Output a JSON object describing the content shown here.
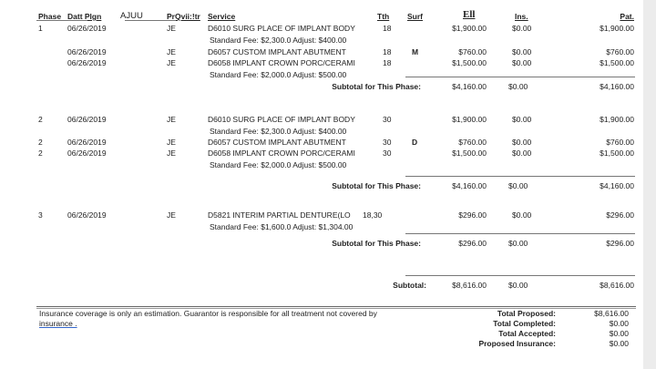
{
  "headers": {
    "phase": "Phase",
    "date": "Datt Plgn",
    "ajuu": "AJUU",
    "provider": "PrQvii:!tr",
    "service": "Service",
    "tooth": "Tth",
    "surf": "Surf",
    "fee": "Ell",
    "ins": "Ins.",
    "pat": "Pat."
  },
  "phases": [
    {
      "rows": [
        {
          "phase": "1",
          "date": "06/26/2019",
          "prov": "JE",
          "service": "D6010 SURG PLACE OF IMPLANT BODY",
          "tooth": "18",
          "surf": "",
          "fee": "$1,900.00",
          "ins": "$0.00",
          "pat": "$1,900.00",
          "note": "Standard Fee: $2,300.0 Adjust: $400.00"
        },
        {
          "phase": "",
          "date": "06/26/2019",
          "prov": "JE",
          "service": "D6057 CUSTOM IMPLANT ABUTMENT",
          "tooth": "18",
          "surf": "M",
          "fee": "$760.00",
          "ins": "$0.00",
          "pat": "$760.00",
          "note": ""
        },
        {
          "phase": "",
          "date": "06/26/2019",
          "prov": "JE",
          "service": "D6058 IMPLANT CROWN PORC/CERAMI",
          "tooth": "18",
          "surf": "",
          "fee": "$1,500.00",
          "ins": "$0.00",
          "pat": "$1,500.00",
          "note": "Standard Fee: $2,000.0 Adjust: $500.00"
        }
      ],
      "subtotal": {
        "label": "Subtotal for This Phase:",
        "fee": "$4,160.00",
        "ins": "$0.00",
        "pat": "$4,160.00"
      }
    },
    {
      "rows": [
        {
          "phase": "2",
          "date": "06/26/2019",
          "prov": "JE",
          "service": "D6010 SURG PLACE OF IMPLANT BODY",
          "tooth": "30",
          "surf": "",
          "fee": "$1,900.00",
          "ins": "$0.00",
          "pat": "$1,900.00",
          "note": "Standard Fee: $2,300.0 Adjust: $400.00"
        },
        {
          "phase": "2",
          "date": "06/26/2019",
          "prov": "JE",
          "service": "D6057 CUSTOM IMPLANT ABUTMENT",
          "tooth": "30",
          "surf": "D",
          "fee": "$760.00",
          "ins": "$0.00",
          "pat": "$760.00",
          "note": ""
        },
        {
          "phase": "2",
          "date": "06/26/2019",
          "prov": "JE",
          "service": "D6058 IMPLANT CROWN PORC/CERAMI",
          "tooth": "30",
          "surf": "",
          "fee": "$1,500.00",
          "ins": "$0.00",
          "pat": "$1,500.00",
          "note": "Standard Fee: $2,000.0 Adjust: $500.00"
        }
      ],
      "subtotal": {
        "label": "Subtotal for This Phase:",
        "fee": "$4,160.00",
        "ins": "$0.00",
        "pat": "$4,160.00"
      }
    },
    {
      "rows": [
        {
          "phase": "3",
          "date": "06/26/2019",
          "prov": "JE",
          "service": "D5821  INTERIM PARTIAL DENTURE(LO",
          "tooth": "18,30",
          "surf": "",
          "fee": "$296.00",
          "ins": "$0.00",
          "pat": "$296.00",
          "note": "Standard Fee: $1,600.0 Adjust: $1,304.00"
        }
      ],
      "subtotal": {
        "label": "Subtotal for This Phase:",
        "fee": "$296.00",
        "ins": "$0.00",
        "pat": "$296.00"
      }
    }
  ],
  "grand": {
    "label": "Subtotal:",
    "fee": "$8,616.00",
    "ins": "$0.00",
    "pat": "$8,616.00"
  },
  "footer": {
    "disclaimer": "Insurance coverage is only an estimation. Guarantor is responsible for all treatment not covered by",
    "disclaimer2": "insurance ."
  },
  "totals": [
    {
      "label": "Total Proposed:",
      "value": "$8,616.00"
    },
    {
      "label": "Total Completed:",
      "value": "$0.00"
    },
    {
      "label": "Total Accepted:",
      "value": "$0.00"
    },
    {
      "label": "Proposed Insurance:",
      "value": "$0.00"
    }
  ]
}
